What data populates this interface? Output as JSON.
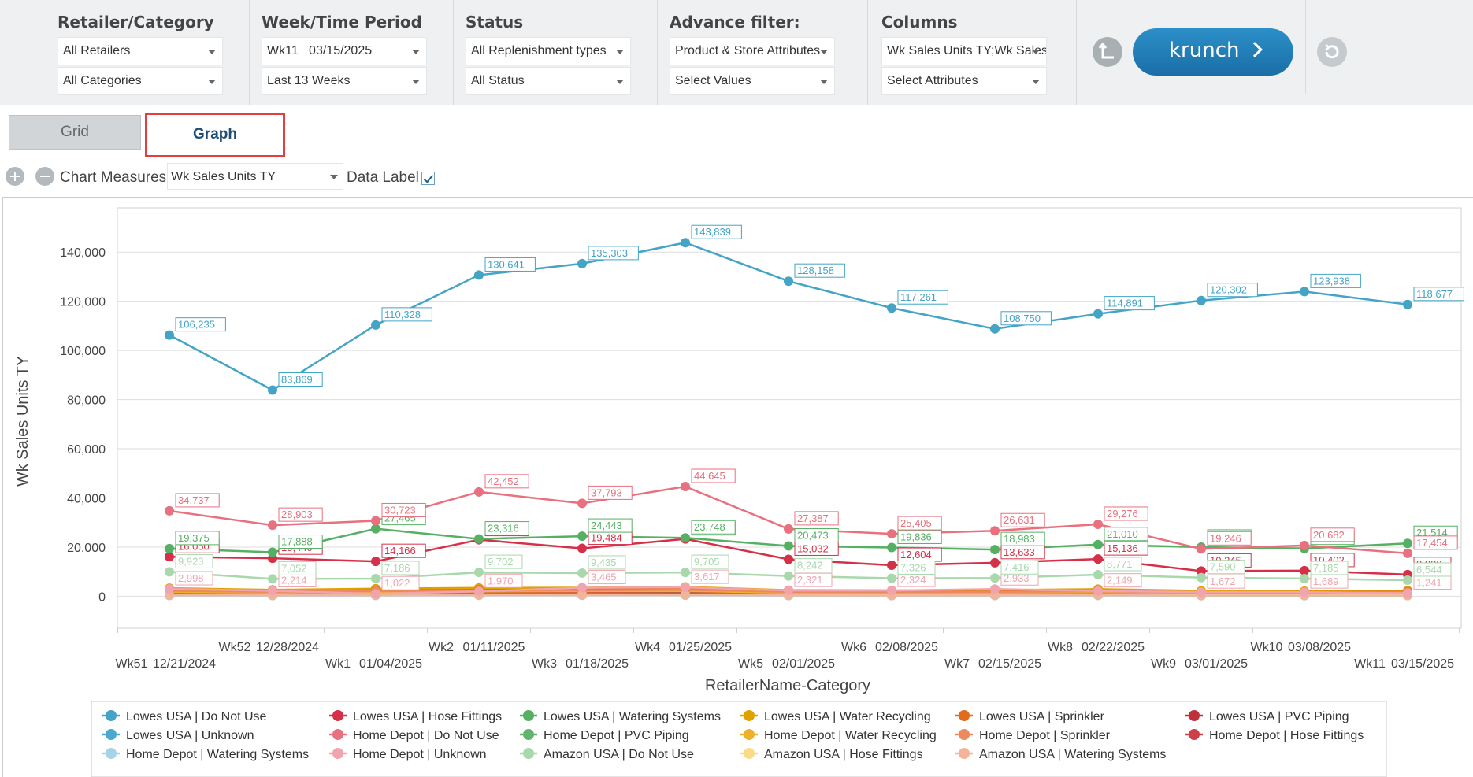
{
  "filters": [
    {
      "title": "Retailer/Category",
      "row1": "All Retailers",
      "row2": "All Categories"
    },
    {
      "title": "Week/Time Period",
      "row1": "Wk11   03/15/2025",
      "row2": "Last 13 Weeks"
    },
    {
      "title": "Status",
      "row1": "All Replenishment types",
      "row2": "All Status"
    },
    {
      "title": "Advance filter:",
      "row1": "Product & Store Attributes",
      "row2": "Select Values"
    },
    {
      "title": "Columns",
      "row1": "Wk Sales Units TY;Wk Sales",
      "row2": "Select Attributes"
    }
  ],
  "actions": {
    "krunch": "krunch",
    "undo_icon": "corner-arrow-icon",
    "refresh_icon": "refresh-icon"
  },
  "tabs": {
    "grid": "Grid",
    "graph": "Graph",
    "active": "graph"
  },
  "controls": {
    "zoom_in_icon": "plus-circle-icon",
    "zoom_out_icon": "minus-circle-icon",
    "measures_label": "Chart Measures:",
    "measures_value": "Wk Sales Units TY",
    "data_label": "Data Label",
    "data_label_checked": true
  },
  "chart_data": {
    "type": "line",
    "xlabel": "RetailerName-Category",
    "ylabel": "Wk Sales Units TY",
    "ylim": [
      -13000,
      158000
    ],
    "yticks": [
      "0",
      "20,000",
      "40,000",
      "60,000",
      "80,000",
      "100,000",
      "120,000",
      "140,000"
    ],
    "ytick_values": [
      0,
      20000,
      40000,
      60000,
      80000,
      100000,
      120000,
      140000
    ],
    "grid": true,
    "legend_position": "bottom",
    "x": [
      {
        "wk": "Wk51",
        "date": "12/21/2024"
      },
      {
        "wk": "Wk52",
        "date": "12/28/2024"
      },
      {
        "wk": "Wk1",
        "date": "01/04/2025"
      },
      {
        "wk": "Wk2",
        "date": "01/11/2025"
      },
      {
        "wk": "Wk3",
        "date": "01/18/2025"
      },
      {
        "wk": "Wk4",
        "date": "01/25/2025"
      },
      {
        "wk": "Wk5",
        "date": "02/01/2025"
      },
      {
        "wk": "Wk6",
        "date": "02/08/2025"
      },
      {
        "wk": "Wk7",
        "date": "02/15/2025"
      },
      {
        "wk": "Wk8",
        "date": "02/22/2025"
      },
      {
        "wk": "Wk9",
        "date": "03/01/2025"
      },
      {
        "wk": "Wk10",
        "date": "03/08/2025"
      },
      {
        "wk": "Wk11",
        "date": "03/15/2025"
      }
    ],
    "series": [
      {
        "name": "Lowes USA | Do Not Use",
        "color": "#44a4c6",
        "labels": true,
        "values": [
          106235,
          83869,
          110328,
          130641,
          135303,
          143839,
          128158,
          117261,
          108750,
          114891,
          120302,
          123938,
          118677
        ]
      },
      {
        "name": "Lowes USA | Hose Fittings",
        "color": "#d63048",
        "labels": true,
        "values": [
          16050,
          15440,
          14166,
          23000,
          19484,
          23300,
          15032,
          12604,
          13633,
          15136,
          10245,
          10402,
          8830
        ]
      },
      {
        "name": "Lowes USA | Watering Systems",
        "color": "#55b063",
        "labels": true,
        "values": [
          19375,
          17888,
          27465,
          23316,
          24443,
          23748,
          20473,
          19836,
          18983,
          21010,
          19990,
          19436,
          21514
        ]
      },
      {
        "name": "Lowes USA | Water Recycling",
        "color": "#e0a100",
        "labels": false,
        "values": [
          3300,
          2600,
          3100,
          3400,
          3500,
          3800,
          2500,
          2400,
          2500,
          2900,
          2200,
          2100,
          2300
        ]
      },
      {
        "name": "Lowes USA | Sprinkler",
        "color": "#e26b1c",
        "labels": false,
        "values": [
          2500,
          2000,
          2400,
          2600,
          2700,
          3000,
          2000,
          1900,
          1900,
          2200,
          1600,
          1700,
          1800
        ]
      },
      {
        "name": "Lowes USA | PVC Piping",
        "color": "#c0303a",
        "labels": false,
        "values": [
          1200,
          1000,
          1100,
          1300,
          1300,
          1400,
          1000,
          900,
          1000,
          1100,
          800,
          800,
          900
        ]
      },
      {
        "name": "Lowes USA | Unknown",
        "color": "#4aa9cc",
        "labels": false,
        "values": [
          500,
          400,
          500,
          600,
          600,
          600,
          400,
          400,
          400,
          500,
          300,
          300,
          400
        ]
      },
      {
        "name": "Home Depot | Do Not Use",
        "color": "#e8707f",
        "labels": true,
        "values": [
          34737,
          28903,
          30723,
          42452,
          37793,
          44645,
          27387,
          25405,
          26631,
          29276,
          19246,
          20682,
          17454
        ]
      },
      {
        "name": "Home Depot | PVC Piping",
        "color": "#62b56e",
        "labels": false,
        "values": [
          900,
          800,
          900,
          1000,
          1000,
          1100,
          800,
          700,
          800,
          900,
          600,
          600,
          700
        ]
      },
      {
        "name": "Home Depot | Water Recycling",
        "color": "#f0b12a",
        "labels": false,
        "values": [
          1800,
          1500,
          1700,
          1900,
          2000,
          2100,
          1500,
          1400,
          1500,
          1700,
          1300,
          1300,
          1400
        ]
      },
      {
        "name": "Home Depot | Sprinkler",
        "color": "#ec8a5f",
        "labels": false,
        "values": [
          2200,
          1800,
          2100,
          2300,
          2400,
          2600,
          1800,
          1700,
          1800,
          2000,
          1500,
          1500,
          1600
        ]
      },
      {
        "name": "Home Depot | Hose Fittings",
        "color": "#cf3e49",
        "labels": false,
        "values": [
          700,
          600,
          700,
          800,
          800,
          900,
          600,
          600,
          600,
          700,
          500,
          500,
          500
        ]
      },
      {
        "name": "Home Depot | Watering Systems",
        "color": "#a6d3e6",
        "labels": false,
        "values": [
          300,
          250,
          300,
          350,
          350,
          400,
          250,
          250,
          250,
          300,
          200,
          200,
          250
        ]
      },
      {
        "name": "Home Depot | Unknown",
        "color": "#f1a3ae",
        "labels": true,
        "values": [
          2998,
          2214,
          1022,
          1970,
          3465,
          3617,
          2321,
          2324,
          2933,
          2149,
          1672,
          1689,
          1241
        ]
      },
      {
        "name": "Amazon USA | Do Not Use",
        "color": "#a9d8ad",
        "labels": true,
        "values": [
          9923,
          7052,
          7186,
          9702,
          9435,
          9705,
          8242,
          7326,
          7416,
          8771,
          7590,
          7185,
          6544
        ]
      },
      {
        "name": "Amazon USA | Hose Fittings",
        "color": "#f8dc8a",
        "labels": false,
        "values": [
          600,
          500,
          550,
          650,
          650,
          700,
          500,
          450,
          500,
          550,
          400,
          400,
          450
        ]
      },
      {
        "name": "Amazon USA | Watering Systems",
        "color": "#f3b59a",
        "labels": false,
        "values": [
          400,
          350,
          400,
          450,
          450,
          500,
          350,
          300,
          350,
          400,
          300,
          300,
          300
        ]
      }
    ]
  }
}
